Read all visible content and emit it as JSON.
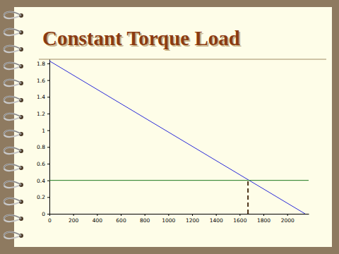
{
  "chart_data": {
    "type": "line",
    "title": "Constant Torque Load",
    "xlim": [
      0,
      2180
    ],
    "xticks": [
      0,
      200,
      400,
      600,
      800,
      1000,
      1200,
      1400,
      1600,
      1800,
      2000
    ],
    "ylim": [
      0,
      1.85
    ],
    "yticks": [
      0,
      0.2,
      0.4,
      0.6,
      0.8,
      1,
      1.2,
      1.4,
      1.6,
      1.8
    ],
    "series": [
      {
        "color": "#2a2ad8",
        "x": [
          0,
          2150
        ],
        "values": [
          1.83,
          0
        ]
      },
      {
        "color": "#1f7a1f",
        "x": [
          0,
          2180
        ],
        "values": [
          0.4,
          0.4
        ]
      },
      {
        "color": "#4a3015",
        "line_style": "dashed",
        "x": [
          1670,
          1670
        ],
        "values": [
          0,
          0.4
        ]
      }
    ]
  }
}
